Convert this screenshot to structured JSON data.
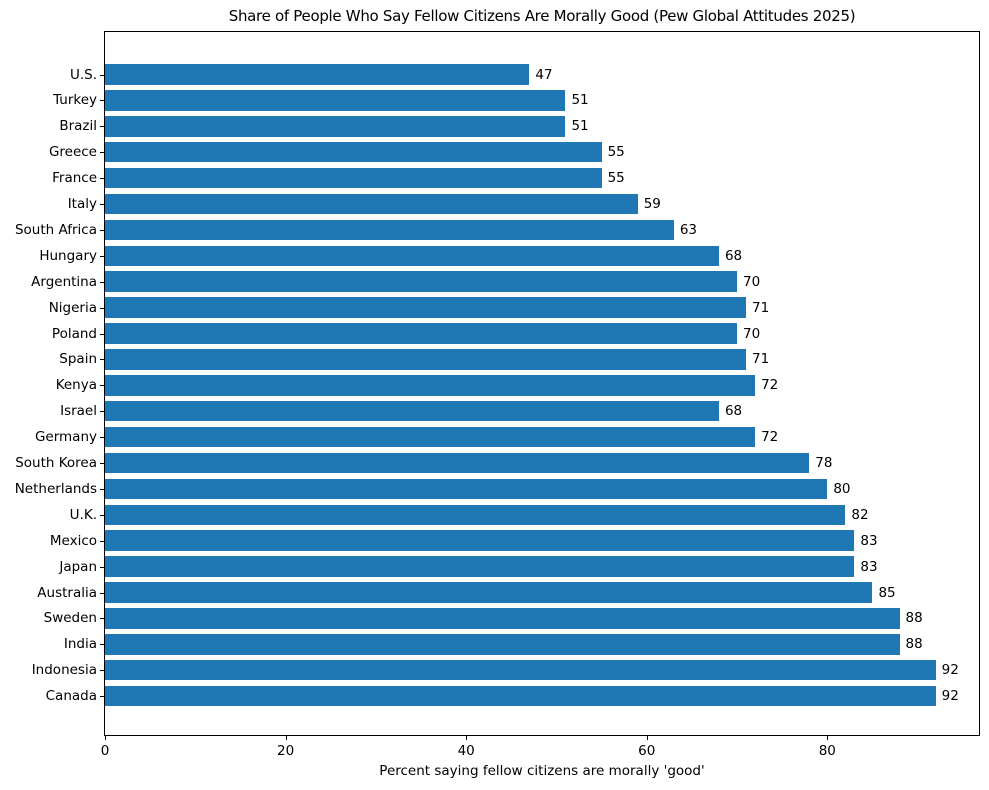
{
  "chart_data": {
    "type": "bar",
    "orientation": "horizontal",
    "title": "Share of People Who Say Fellow Citizens Are Morally Good (Pew Global Attitudes 2025)",
    "xlabel": "Percent saying fellow citizens are morally 'good'",
    "x_ticks": [
      0,
      20,
      40,
      60,
      80
    ],
    "xlim": [
      0,
      96.8
    ],
    "grid": false,
    "legend": "none",
    "value_labels_shown": true,
    "bar_color": "#1f77b4",
    "axis_color": "#000000",
    "text_color": "#000000",
    "background_color": "#ffffff",
    "categories": [
      "U.S.",
      "Turkey",
      "Brazil",
      "Greece",
      "France",
      "Italy",
      "South Africa",
      "Hungary",
      "Argentina",
      "Nigeria",
      "Poland",
      "Spain",
      "Kenya",
      "Israel",
      "Germany",
      "South Korea",
      "Netherlands",
      "U.K.",
      "Mexico",
      "Japan",
      "Australia",
      "Sweden",
      "India",
      "Indonesia",
      "Canada"
    ],
    "values": [
      47,
      51,
      51,
      55,
      55,
      59,
      63,
      68,
      70,
      71,
      70,
      71,
      72,
      68,
      72,
      78,
      80,
      82,
      83,
      83,
      85,
      88,
      88,
      92,
      92
    ]
  }
}
